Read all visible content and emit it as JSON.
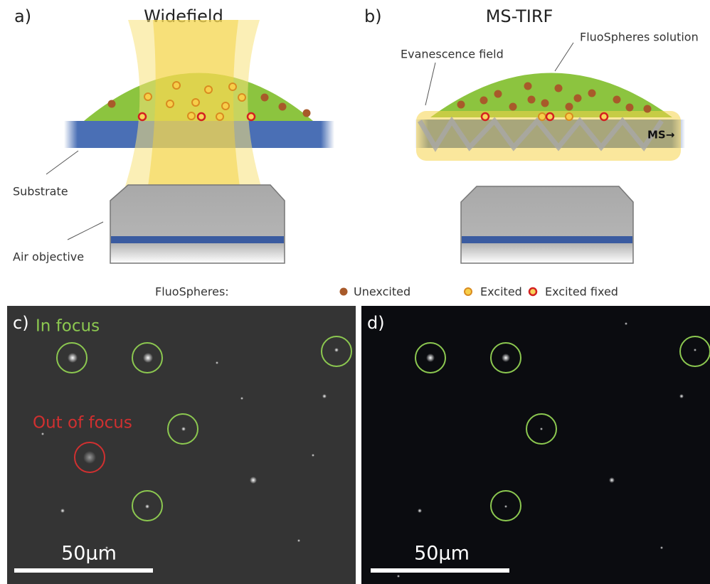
{
  "panel_a": {
    "label": "a)",
    "title": "Widefield",
    "annotations": [
      "Substrate",
      "Air objective"
    ]
  },
  "panel_b": {
    "label": "b)",
    "title": "MS-TIRF",
    "annotations": [
      "FluoSpheres solution",
      "Evanescence field",
      "MS→"
    ]
  },
  "legend": {
    "title": "FluoSpheres:",
    "items": [
      "Unexcited",
      "Excited",
      "Excited fixed"
    ]
  },
  "panel_c": {
    "label": "c)",
    "annotations": [
      "In focus",
      "Out of focus"
    ],
    "scale_bar": "50μm"
  },
  "panel_d": {
    "label": "d)",
    "scale_bar": "50μm"
  }
}
